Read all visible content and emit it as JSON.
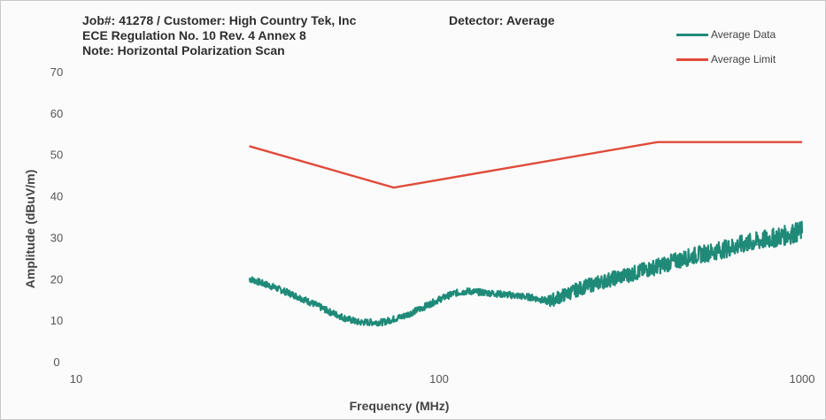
{
  "header": {
    "line1": "Job#: 41278 / Customer: High Country Tek, Inc",
    "line2": "ECE Regulation No. 10 Rev. 4 Annex 8",
    "line3": "Note: Horizontal Polarization Scan",
    "detector": "Detector: Average"
  },
  "chart_data": {
    "type": "line",
    "xscale": "log",
    "xlim": [
      10,
      1000
    ],
    "ylim": [
      0,
      70
    ],
    "xlabel": "Frequency (MHz)",
    "ylabel": "Amplitude (dBuV/m)",
    "x_ticks": [
      10,
      100,
      1000
    ],
    "y_ticks": [
      0,
      10,
      20,
      30,
      40,
      50,
      60,
      70
    ],
    "grid": false,
    "legend_position": "top-right",
    "series": [
      {
        "name": "Average Data",
        "color": "#1f8a78",
        "style": "noisy",
        "x": [
          30,
          35,
          40,
          45,
          50,
          55,
          60,
          70,
          80,
          90,
          100,
          110,
          120,
          140,
          160,
          180,
          200,
          220,
          250,
          300,
          350,
          400,
          500,
          600,
          700,
          800,
          900,
          1000
        ],
        "y": [
          20,
          18,
          16,
          14,
          12,
          10.5,
          9.5,
          9.5,
          11,
          13,
          15,
          16.5,
          17,
          16.5,
          16,
          15.5,
          14.5,
          16,
          18,
          20,
          21.5,
          23,
          25.5,
          27,
          28.5,
          29.5,
          30.5,
          31.5
        ]
      },
      {
        "name": "Average Limit",
        "color": "#e04b3a",
        "style": "solid",
        "x": [
          30,
          75,
          400,
          1000
        ],
        "y": [
          52,
          42,
          53,
          53
        ]
      }
    ]
  }
}
